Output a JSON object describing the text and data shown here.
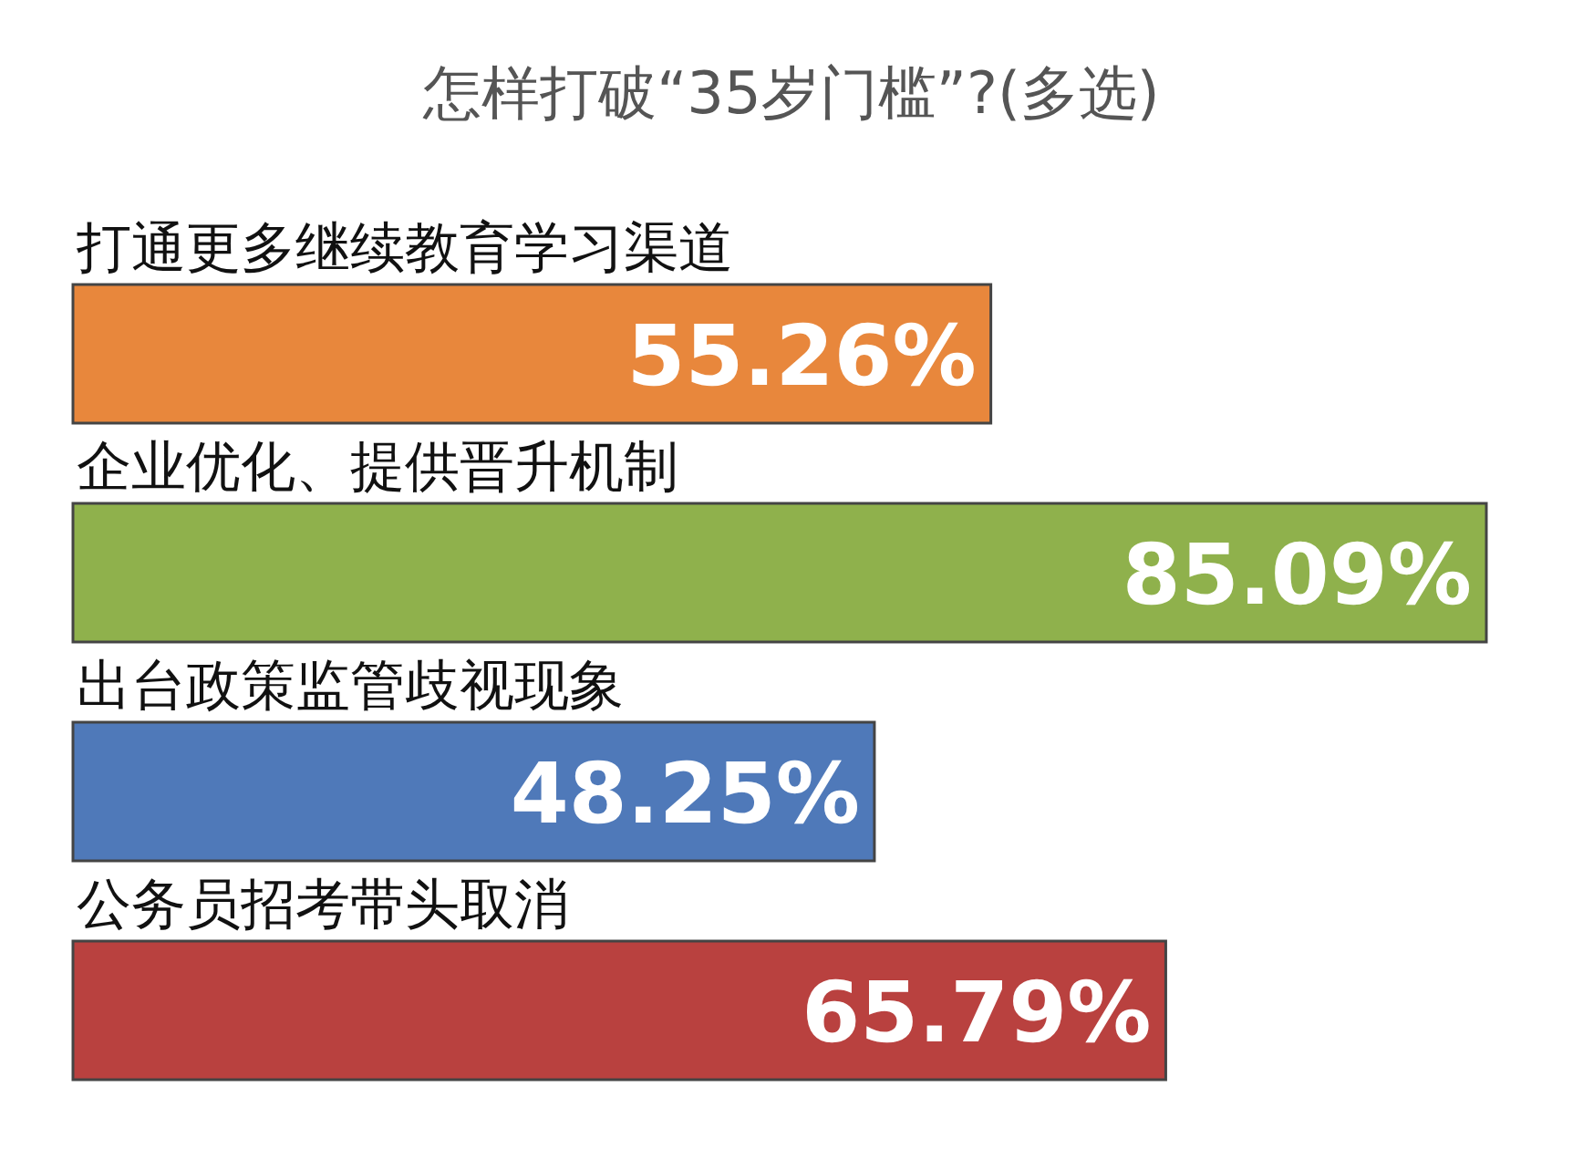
{
  "chart_data": {
    "type": "bar",
    "orientation": "horizontal",
    "title": "怎样打破“35岁门槛”?(多选)",
    "categories": [
      "打通更多继续教育学习渠道",
      "企业优化、提供晋升机制",
      "出台政策监管歧视现象",
      "公务员招考带头取消"
    ],
    "values": [
      55.26,
      85.09,
      48.25,
      65.79
    ],
    "colors": [
      "#e8873c",
      "#8fb14c",
      "#4f79b9",
      "#b9413f"
    ],
    "value_labels": [
      "55.26%",
      "85.09%",
      "48.25%",
      "65.79%"
    ]
  }
}
